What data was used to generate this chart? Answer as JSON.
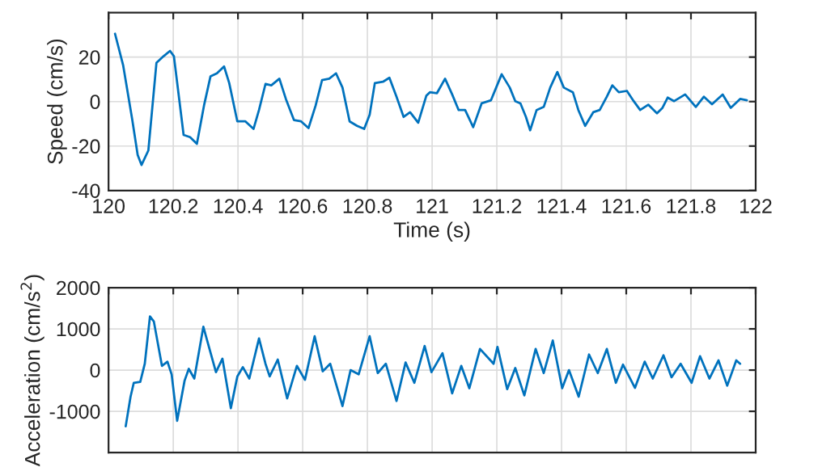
{
  "chart_data": [
    {
      "type": "line",
      "xlabel": "Time (s)",
      "ylabel": "Speed (cm/s)",
      "xlim": [
        120,
        122
      ],
      "ylim": [
        -40,
        40
      ],
      "xticks": [
        120,
        120.2,
        120.4,
        120.6,
        120.8,
        121,
        121.2,
        121.4,
        121.6,
        121.8,
        122
      ],
      "yticks": [
        -40,
        -20,
        0,
        20
      ],
      "grid": true,
      "x": [
        120.02,
        120.045,
        120.073,
        120.09,
        120.102,
        120.123,
        120.148,
        120.17,
        120.19,
        120.202,
        120.232,
        120.252,
        120.273,
        120.295,
        120.315,
        120.335,
        120.357,
        120.373,
        120.398,
        120.423,
        120.448,
        120.465,
        120.485,
        120.503,
        120.528,
        120.548,
        120.573,
        120.595,
        120.618,
        120.64,
        120.66,
        120.682,
        120.703,
        120.723,
        120.745,
        120.768,
        120.79,
        120.807,
        120.823,
        120.848,
        120.868,
        120.89,
        120.912,
        120.932,
        120.957,
        120.982,
        120.993,
        121.015,
        121.04,
        121.062,
        121.082,
        121.102,
        121.127,
        121.153,
        121.182,
        121.198,
        121.215,
        121.24,
        121.257,
        121.273,
        121.29,
        121.303,
        121.323,
        121.345,
        121.365,
        121.387,
        121.407,
        121.435,
        121.452,
        121.473,
        121.498,
        121.518,
        121.54,
        121.557,
        121.577,
        121.602,
        121.623,
        121.643,
        121.668,
        121.695,
        121.712,
        121.728,
        121.748,
        121.782,
        121.815,
        121.84,
        121.865,
        121.898,
        121.923,
        121.952,
        121.973
      ],
      "series": [
        {
          "color": "#0072bd",
          "values": [
            30.5,
            16.4,
            -7.9,
            -24,
            -28.5,
            -22,
            17.4,
            20.4,
            22.8,
            20.4,
            -15,
            -16,
            -19,
            -1.8,
            11.3,
            12.7,
            15.8,
            8.3,
            -8.9,
            -8.9,
            -12.3,
            -3.8,
            7.9,
            7.3,
            10.3,
            1.2,
            -8.3,
            -8.9,
            -11.9,
            -1.8,
            9.7,
            10.3,
            12.7,
            6.3,
            -8.9,
            -10.9,
            -12.3,
            -5.9,
            8.3,
            8.9,
            10.7,
            2.2,
            -6.9,
            -4.8,
            -9.5,
            2.6,
            4.2,
            3.8,
            10.3,
            3.2,
            -3.8,
            -3.8,
            -11.5,
            -0.8,
            0.6,
            6.3,
            12.3,
            6.3,
            0.2,
            -0.8,
            -6.9,
            -12.9,
            -3.8,
            -2.4,
            6.3,
            13.3,
            6.3,
            4.2,
            -3.8,
            -10.9,
            -4.8,
            -3.8,
            2.2,
            7.3,
            4.2,
            4.8,
            0.2,
            -3.8,
            -1.4,
            -5.3,
            -2.8,
            1.8,
            0.2,
            3.2,
            -2.4,
            2.2,
            -1.2,
            3.2,
            -2.8,
            1.2,
            0.6
          ]
        }
      ]
    },
    {
      "type": "line",
      "ylabel": "Acceleration (cm/s$^{2}$)",
      "xlim": [
        120,
        122
      ],
      "ylim": [
        -2000,
        2000
      ],
      "xticks": [
        120,
        120.2,
        120.4,
        120.6,
        120.8,
        121,
        121.2,
        121.4,
        121.6,
        121.8,
        122
      ],
      "yticks": [
        -1000,
        0,
        1000,
        2000
      ],
      "grid": true,
      "tick_labels": "y",
      "x": [
        120.053,
        120.068,
        120.078,
        120.098,
        120.112,
        120.128,
        120.14,
        120.165,
        120.182,
        120.195,
        120.212,
        120.235,
        120.248,
        120.265,
        120.293,
        120.312,
        120.332,
        120.352,
        120.378,
        120.398,
        120.415,
        120.435,
        120.465,
        120.485,
        120.498,
        120.523,
        120.552,
        120.582,
        120.607,
        120.637,
        120.662,
        120.685,
        120.723,
        120.748,
        120.773,
        120.807,
        120.832,
        120.857,
        120.89,
        120.918,
        120.945,
        120.977,
        120.998,
        121.032,
        121.062,
        121.09,
        121.115,
        121.148,
        121.19,
        121.202,
        121.232,
        121.257,
        121.285,
        121.32,
        121.345,
        121.373,
        121.402,
        121.423,
        121.453,
        121.485,
        121.512,
        121.54,
        121.568,
        121.59,
        121.627,
        121.657,
        121.682,
        121.715,
        121.74,
        121.768,
        121.802,
        121.828,
        121.857,
        121.885,
        121.912,
        121.94,
        121.952
      ],
      "series": [
        {
          "color": "#0072bd",
          "values": [
            -1364,
            -646,
            -308,
            -287,
            154,
            1303,
            1180,
            103,
            205,
            -103,
            -1231,
            -256,
            31,
            -205,
            1051,
            513,
            -51,
            277,
            -923,
            -154,
            72,
            -205,
            769,
            154,
            -154,
            256,
            -687,
            103,
            -236,
            821,
            -31,
            154,
            -872,
            0,
            -103,
            821,
            -72,
            154,
            -749,
            185,
            -308,
            585,
            -51,
            410,
            -564,
            103,
            -441,
            513,
            154,
            564,
            -462,
            51,
            -615,
            513,
            -72,
            718,
            -441,
            0,
            -646,
            379,
            -72,
            513,
            -308,
            133,
            -431,
            205,
            -205,
            359,
            -174,
            154,
            -308,
            338,
            -205,
            236,
            -379,
            236,
            154
          ]
        }
      ]
    }
  ]
}
